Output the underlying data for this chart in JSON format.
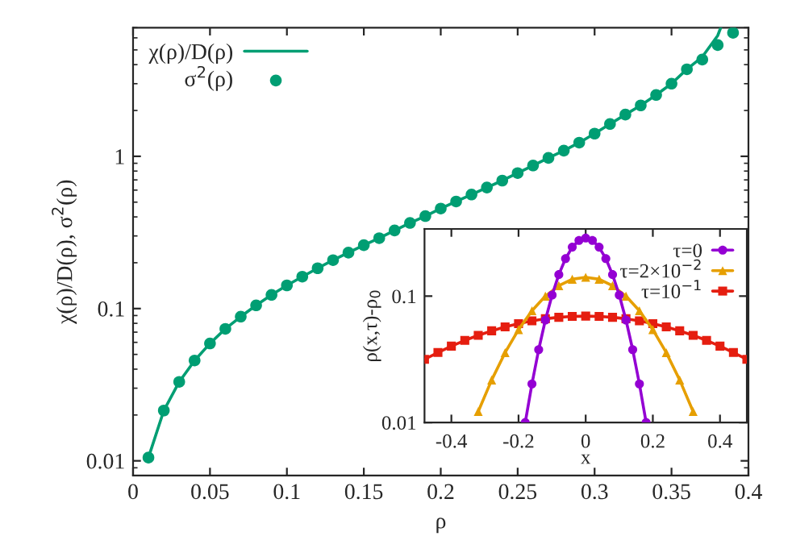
{
  "chart_data": [
    {
      "type": "line",
      "xlabel": "ρ",
      "ylabel": "χ(ρ)/D(ρ), σ$^{2}$(ρ)",
      "log": "y",
      "legend": "top left",
      "xlim": [
        0,
        0.4
      ],
      "xticks": [
        0,
        0.05,
        0.1,
        0.15,
        0.2,
        0.25,
        0.3,
        0.35,
        0.4
      ],
      "ylim": [
        0.008,
        7
      ],
      "yticks": [
        0.01,
        0.1,
        1
      ],
      "series": [
        {
          "name": "χ(ρ)/D(ρ)",
          "color": "#009e73",
          "marker": "none",
          "line_style": "solid",
          "x": [
            0.01,
            0.02,
            0.03,
            0.04,
            0.05,
            0.06,
            0.07,
            0.08,
            0.09,
            0.1,
            0.11,
            0.12,
            0.13,
            0.14,
            0.15,
            0.16,
            0.17,
            0.18,
            0.19,
            0.2,
            0.21,
            0.22,
            0.23,
            0.24,
            0.25,
            0.26,
            0.27,
            0.28,
            0.29,
            0.3,
            0.31,
            0.32,
            0.33,
            0.34,
            0.35,
            0.36,
            0.37,
            0.38,
            0.382
          ],
          "values": [
            0.0105,
            0.0214,
            0.033,
            0.0456,
            0.059,
            0.0736,
            0.0885,
            0.105,
            0.123,
            0.142,
            0.162,
            0.184,
            0.208,
            0.233,
            0.261,
            0.29,
            0.326,
            0.365,
            0.405,
            0.454,
            0.505,
            0.561,
            0.624,
            0.693,
            0.776,
            0.87,
            0.976,
            1.09,
            1.23,
            1.41,
            1.63,
            1.88,
            2.16,
            2.53,
            3.0,
            3.73,
            4.5,
            6.2,
            7.0
          ]
        },
        {
          "name": "σ$^{2}$(ρ)",
          "type": "scatter",
          "color": "#009e73",
          "marker": "circle",
          "x": [
            0.01,
            0.02,
            0.03,
            0.04,
            0.05,
            0.06,
            0.07,
            0.08,
            0.09,
            0.1,
            0.11,
            0.12,
            0.13,
            0.14,
            0.15,
            0.16,
            0.17,
            0.18,
            0.19,
            0.2,
            0.21,
            0.22,
            0.23,
            0.24,
            0.25,
            0.26,
            0.27,
            0.28,
            0.29,
            0.3,
            0.31,
            0.32,
            0.33,
            0.34,
            0.35,
            0.36,
            0.37,
            0.38,
            0.39
          ],
          "values": [
            0.0105,
            0.0214,
            0.033,
            0.0456,
            0.059,
            0.0736,
            0.0885,
            0.105,
            0.123,
            0.142,
            0.162,
            0.184,
            0.208,
            0.233,
            0.261,
            0.29,
            0.326,
            0.365,
            0.405,
            0.454,
            0.505,
            0.561,
            0.624,
            0.693,
            0.776,
            0.87,
            0.976,
            1.09,
            1.23,
            1.41,
            1.63,
            1.88,
            2.16,
            2.53,
            3.0,
            3.73,
            4.32,
            5.38,
            6.48
          ]
        }
      ]
    },
    {
      "type": "line",
      "xlabel": "x",
      "ylabel": "ρ(x,τ)-ρ$_{0}$",
      "log": "y",
      "legend": "top right",
      "xlim": [
        -0.48,
        0.48
      ],
      "xticks": [
        -0.4,
        -0.2,
        0,
        0.2,
        0.4
      ],
      "ylim": [
        0.01,
        0.34
      ],
      "yticks": [
        0.01,
        0.1
      ],
      "series": [
        {
          "name": "τ=0",
          "color": "#9400d3",
          "marker": "circle",
          "line_style": "solid",
          "x": [
            -0.18,
            -0.16,
            -0.14,
            -0.12,
            -0.1,
            -0.08,
            -0.06,
            -0.04,
            -0.02,
            0,
            0.02,
            0.04,
            0.06,
            0.08,
            0.1,
            0.12,
            0.14,
            0.16,
            0.18
          ],
          "values": [
            0.01,
            0.0202,
            0.0377,
            0.0647,
            0.102,
            0.148,
            0.198,
            0.244,
            0.276,
            0.288,
            0.276,
            0.244,
            0.198,
            0.148,
            0.102,
            0.0647,
            0.0377,
            0.0202,
            0.01
          ]
        },
        {
          "name": "τ=2×10$^{−2}$",
          "color": "#e69f00",
          "marker": "triangle",
          "line_style": "solid",
          "x": [
            -0.32,
            -0.28,
            -0.24,
            -0.2,
            -0.16,
            -0.12,
            -0.08,
            -0.04,
            0,
            0.04,
            0.08,
            0.12,
            0.16,
            0.2,
            0.24,
            0.28,
            0.32
          ],
          "values": [
            0.0122,
            0.0217,
            0.0357,
            0.0543,
            0.0765,
            0.1,
            0.121,
            0.136,
            0.141,
            0.136,
            0.121,
            0.1,
            0.0765,
            0.0543,
            0.0357,
            0.0217,
            0.0122
          ]
        },
        {
          "name": "τ=10$^{−1}$",
          "color": "#e51e10",
          "marker": "square",
          "line_style": "solid",
          "x": [
            -0.48,
            -0.44,
            -0.4,
            -0.36,
            -0.32,
            -0.28,
            -0.24,
            -0.2,
            -0.16,
            -0.12,
            -0.08,
            -0.04,
            0,
            0.04,
            0.08,
            0.12,
            0.16,
            0.2,
            0.24,
            0.28,
            0.32,
            0.36,
            0.4,
            0.44,
            0.48
          ],
          "values": [
            0.0316,
            0.0358,
            0.0402,
            0.0446,
            0.0489,
            0.0531,
            0.0571,
            0.0606,
            0.0637,
            0.0662,
            0.068,
            0.0691,
            0.0695,
            0.0691,
            0.068,
            0.0662,
            0.0637,
            0.0606,
            0.0571,
            0.0531,
            0.0489,
            0.0446,
            0.0402,
            0.0358,
            0.0316
          ]
        }
      ]
    }
  ]
}
